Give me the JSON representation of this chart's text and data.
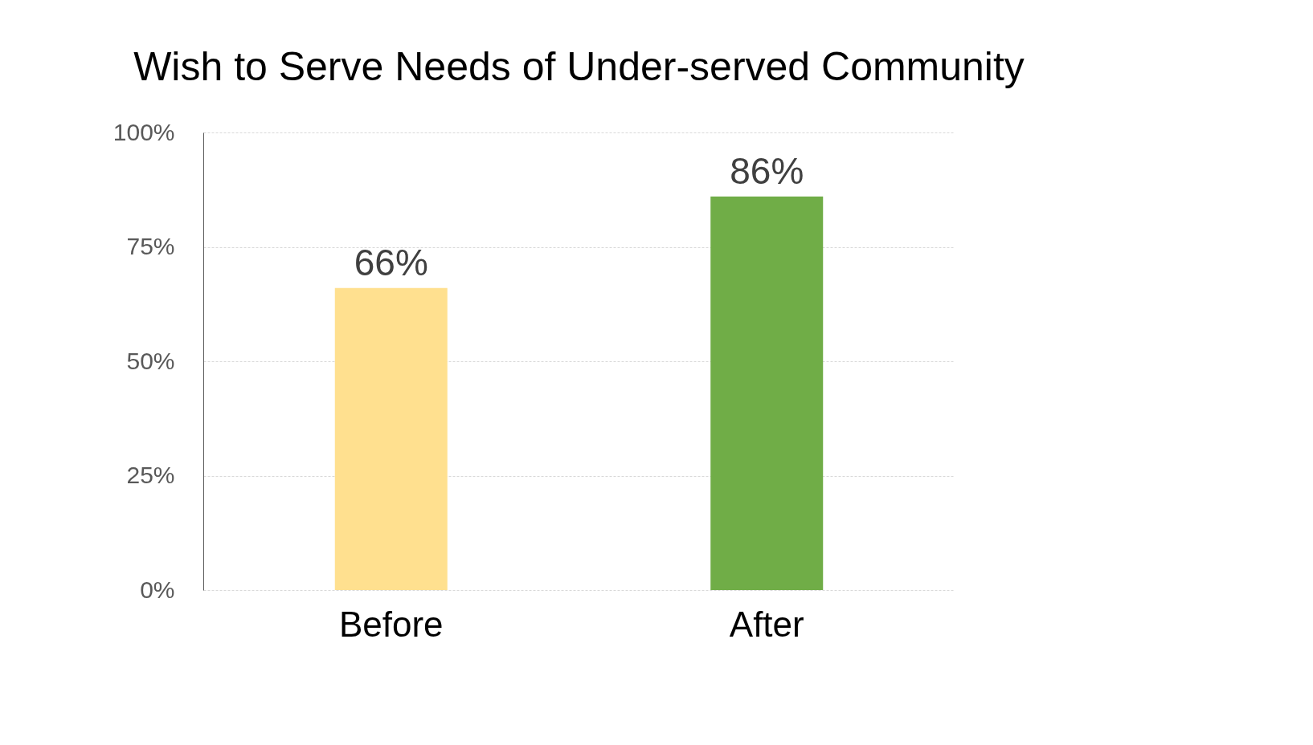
{
  "chart_data": {
    "type": "bar",
    "title": "Wish to Serve Needs of Under-served Community",
    "categories": [
      "Before",
      "After"
    ],
    "values": [
      66,
      86
    ],
    "colors": [
      "#ffe08f",
      "#70ad47"
    ],
    "value_labels": [
      "66%",
      "86%"
    ],
    "ylim": [
      0,
      100
    ],
    "yticks": [
      {
        "value": 0,
        "label": "0%"
      },
      {
        "value": 25,
        "label": "25%"
      },
      {
        "value": 50,
        "label": "50%"
      },
      {
        "value": 75,
        "label": "75%"
      },
      {
        "value": 100,
        "label": "100%"
      }
    ],
    "grid": "y"
  }
}
